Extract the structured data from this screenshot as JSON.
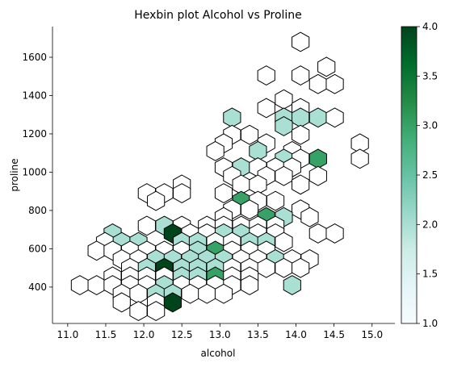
{
  "chart_data": {
    "type": "hexbin",
    "title": "Hexbin plot Alcohol vs Proline",
    "xlabel": "alcohol",
    "ylabel": "proline",
    "xlim": [
      10.8,
      15.3
    ],
    "ylim": [
      210,
      1760
    ],
    "xticks": [
      11.0,
      11.5,
      12.0,
      12.5,
      13.0,
      13.5,
      14.0,
      14.5,
      15.0
    ],
    "yticks": [
      400,
      600,
      800,
      1000,
      1200,
      1400,
      1600
    ],
    "xtick_labels": [
      "11.0",
      "11.5",
      "12.0",
      "12.5",
      "13.0",
      "13.5",
      "14.0",
      "14.5",
      "15.0"
    ],
    "ytick_labels": [
      "400",
      "600",
      "800",
      "1000",
      "1200",
      "1400",
      "1600"
    ],
    "grid": false,
    "colormap": "BuGn",
    "colorbar": {
      "range": [
        1.0,
        4.0
      ],
      "ticks": [
        1.0,
        1.5,
        2.0,
        2.5,
        3.0,
        3.5,
        4.0
      ],
      "tick_labels": [
        "1.0",
        "1.5",
        "2.0",
        "2.5",
        "3.0",
        "3.5",
        "4.0"
      ]
    },
    "hexagon_size": {
      "dx": 0.225,
      "dy": 50
    },
    "cells": [
      [
        14.06,
        1680,
        1
      ],
      [
        14.4,
        1550,
        1
      ],
      [
        13.61,
        1505,
        1
      ],
      [
        14.06,
        1505,
        1
      ],
      [
        14.29,
        1460,
        1
      ],
      [
        14.51,
        1460,
        1
      ],
      [
        13.84,
        1380,
        1
      ],
      [
        13.61,
        1335,
        1
      ],
      [
        14.06,
        1335,
        1
      ],
      [
        13.16,
        1285,
        2
      ],
      [
        13.84,
        1285,
        2
      ],
      [
        14.06,
        1285,
        2
      ],
      [
        14.29,
        1285,
        2
      ],
      [
        14.51,
        1285,
        1
      ],
      [
        13.84,
        1240,
        2
      ],
      [
        13.16,
        1195,
        1
      ],
      [
        13.39,
        1195,
        1
      ],
      [
        14.06,
        1195,
        1
      ],
      [
        13.05,
        1150,
        1
      ],
      [
        13.61,
        1150,
        1
      ],
      [
        14.84,
        1150,
        1
      ],
      [
        12.94,
        1110,
        1
      ],
      [
        13.5,
        1110,
        2
      ],
      [
        13.95,
        1110,
        1
      ],
      [
        13.84,
        1070,
        2
      ],
      [
        14.06,
        1070,
        1
      ],
      [
        14.29,
        1070,
        3
      ],
      [
        14.84,
        1070,
        1
      ],
      [
        13.05,
        1025,
        1
      ],
      [
        13.28,
        1025,
        2
      ],
      [
        13.5,
        1025,
        1
      ],
      [
        13.73,
        1025,
        1
      ],
      [
        13.95,
        1025,
        1
      ],
      [
        13.16,
        980,
        1
      ],
      [
        13.61,
        980,
        1
      ],
      [
        13.84,
        980,
        1
      ],
      [
        14.29,
        980,
        1
      ],
      [
        12.5,
        935,
        1
      ],
      [
        13.28,
        935,
        1
      ],
      [
        13.5,
        935,
        1
      ],
      [
        14.06,
        935,
        1
      ],
      [
        12.04,
        890,
        1
      ],
      [
        12.27,
        890,
        1
      ],
      [
        12.5,
        890,
        1
      ],
      [
        13.05,
        890,
        1
      ],
      [
        12.16,
        850,
        1
      ],
      [
        13.28,
        850,
        3
      ],
      [
        13.5,
        850,
        1
      ],
      [
        13.73,
        850,
        1
      ],
      [
        13.16,
        805,
        1
      ],
      [
        13.39,
        805,
        1
      ],
      [
        14.06,
        805,
        1
      ],
      [
        13.05,
        765,
        1
      ],
      [
        13.61,
        765,
        3
      ],
      [
        13.84,
        765,
        2
      ],
      [
        14.18,
        765,
        1
      ],
      [
        12.04,
        720,
        1
      ],
      [
        12.27,
        720,
        2
      ],
      [
        12.5,
        720,
        1
      ],
      [
        12.83,
        720,
        1
      ],
      [
        13.05,
        720,
        1
      ],
      [
        13.28,
        720,
        1
      ],
      [
        13.5,
        720,
        1
      ],
      [
        13.73,
        720,
        1
      ],
      [
        11.59,
        680,
        2
      ],
      [
        12.38,
        680,
        4
      ],
      [
        12.61,
        680,
        1
      ],
      [
        12.83,
        680,
        1
      ],
      [
        13.05,
        680,
        2
      ],
      [
        13.28,
        680,
        2
      ],
      [
        13.5,
        680,
        1
      ],
      [
        13.73,
        680,
        1
      ],
      [
        14.29,
        680,
        1
      ],
      [
        14.51,
        680,
        1
      ],
      [
        11.49,
        635,
        1
      ],
      [
        11.71,
        635,
        2
      ],
      [
        11.93,
        635,
        2
      ],
      [
        12.5,
        635,
        2
      ],
      [
        12.71,
        635,
        2
      ],
      [
        12.94,
        635,
        1
      ],
      [
        13.16,
        635,
        1
      ],
      [
        13.39,
        635,
        2
      ],
      [
        13.61,
        635,
        2
      ],
      [
        13.84,
        635,
        1
      ],
      [
        11.38,
        590,
        1
      ],
      [
        11.59,
        590,
        1
      ],
      [
        11.82,
        590,
        1
      ],
      [
        12.04,
        590,
        1
      ],
      [
        12.27,
        590,
        1
      ],
      [
        12.5,
        590,
        1
      ],
      [
        12.71,
        590,
        2
      ],
      [
        12.94,
        590,
        3
      ],
      [
        13.16,
        590,
        1
      ],
      [
        13.39,
        590,
        1
      ],
      [
        13.61,
        590,
        1
      ],
      [
        11.71,
        545,
        1
      ],
      [
        11.93,
        545,
        1
      ],
      [
        12.16,
        545,
        2
      ],
      [
        12.38,
        545,
        2
      ],
      [
        12.61,
        545,
        2
      ],
      [
        12.83,
        545,
        2
      ],
      [
        13.05,
        545,
        2
      ],
      [
        13.28,
        545,
        1
      ],
      [
        13.5,
        545,
        1
      ],
      [
        13.73,
        545,
        2
      ],
      [
        13.95,
        545,
        1
      ],
      [
        14.18,
        545,
        1
      ],
      [
        11.82,
        500,
        1
      ],
      [
        12.04,
        500,
        2
      ],
      [
        12.27,
        500,
        4
      ],
      [
        12.5,
        500,
        2
      ],
      [
        12.71,
        500,
        2
      ],
      [
        12.94,
        500,
        2
      ],
      [
        13.16,
        500,
        1
      ],
      [
        13.39,
        500,
        1
      ],
      [
        13.61,
        500,
        1
      ],
      [
        13.84,
        500,
        1
      ],
      [
        14.06,
        500,
        1
      ],
      [
        11.59,
        455,
        1
      ],
      [
        11.82,
        455,
        1
      ],
      [
        12.04,
        455,
        1
      ],
      [
        12.27,
        455,
        1
      ],
      [
        12.5,
        455,
        2
      ],
      [
        12.71,
        455,
        2
      ],
      [
        12.94,
        455,
        3
      ],
      [
        13.16,
        455,
        1
      ],
      [
        13.39,
        455,
        1
      ],
      [
        11.16,
        410,
        1
      ],
      [
        11.38,
        410,
        1
      ],
      [
        11.59,
        410,
        1
      ],
      [
        11.82,
        410,
        1
      ],
      [
        12.04,
        410,
        1
      ],
      [
        12.27,
        410,
        2
      ],
      [
        12.5,
        410,
        1
      ],
      [
        12.71,
        410,
        1
      ],
      [
        12.94,
        410,
        1
      ],
      [
        13.16,
        410,
        1
      ],
      [
        13.39,
        410,
        1
      ],
      [
        13.95,
        410,
        2
      ],
      [
        11.71,
        365,
        1
      ],
      [
        11.93,
        365,
        1
      ],
      [
        12.16,
        365,
        2
      ],
      [
        12.38,
        365,
        2
      ],
      [
        12.61,
        365,
        1
      ],
      [
        12.83,
        365,
        1
      ],
      [
        13.05,
        365,
        1
      ],
      [
        11.71,
        320,
        1
      ],
      [
        12.16,
        320,
        1
      ],
      [
        12.38,
        320,
        4
      ],
      [
        11.93,
        275,
        1
      ],
      [
        12.16,
        275,
        1
      ]
    ]
  }
}
